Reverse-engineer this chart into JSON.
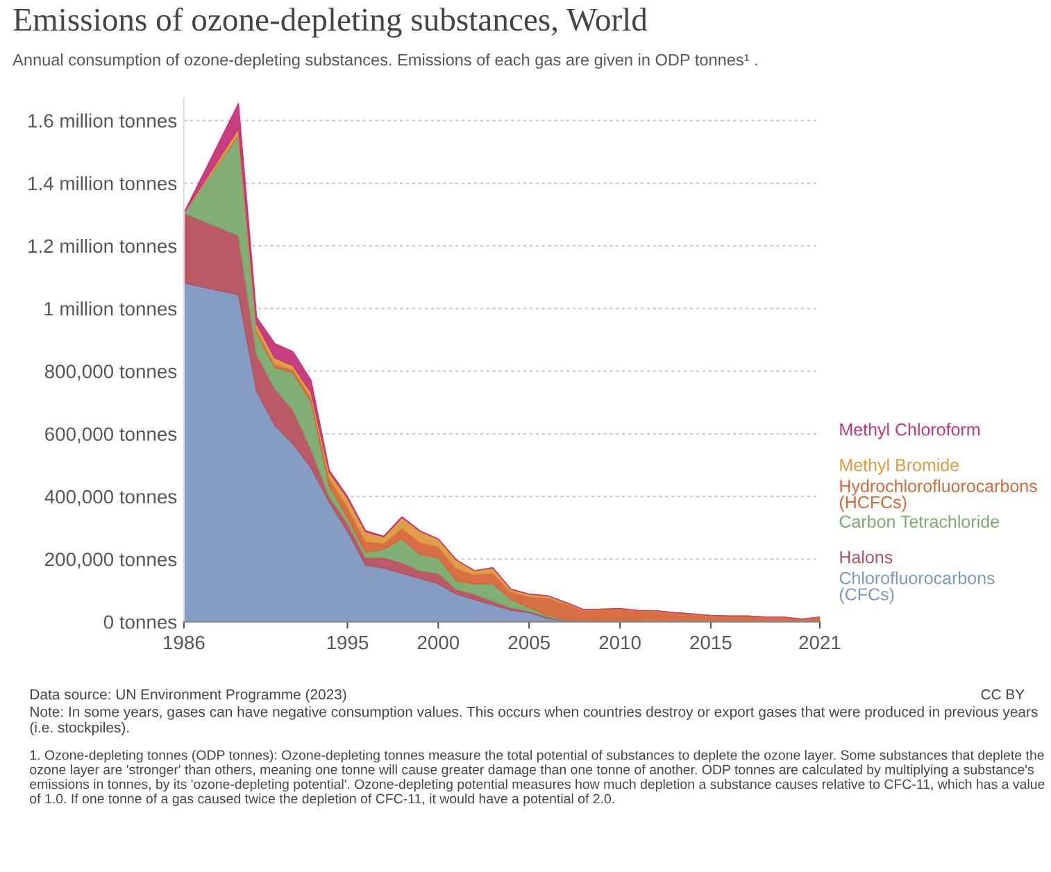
{
  "chart_data": {
    "type": "area",
    "stacked": true,
    "title": "Emissions of ozone-depleting substances, World",
    "subtitle": "Annual consumption of ozone-depleting substances. Emissions of each gas are given in ODP tonnes¹ .",
    "x": [
      1986,
      1989,
      1990,
      1991,
      1992,
      1993,
      1994,
      1995,
      1996,
      1997,
      1998,
      1999,
      2000,
      2001,
      2002,
      2003,
      2004,
      2005,
      2006,
      2007,
      2008,
      2009,
      2010,
      2011,
      2012,
      2013,
      2014,
      2015,
      2016,
      2017,
      2018,
      2019,
      2020,
      2021
    ],
    "series": [
      {
        "name": "Chlorofluorocarbons (CFCs)",
        "color": "#7e97c0",
        "values": [
          1081000,
          1044000,
          736000,
          627000,
          568000,
          492000,
          382000,
          290000,
          180000,
          172000,
          155000,
          138000,
          121000,
          88000,
          71000,
          54000,
          37000,
          29000,
          12000,
          3000,
          0,
          0,
          0,
          0,
          0,
          0,
          0,
          0,
          0,
          0,
          0,
          0,
          0,
          0
        ]
      },
      {
        "name": "Halons",
        "color": "#b5515e",
        "values": [
          224000,
          189000,
          118000,
          117000,
          109000,
          59000,
          18000,
          25000,
          25000,
          33000,
          34000,
          25000,
          34000,
          16000,
          17000,
          12000,
          8000,
          5000,
          5000,
          2000,
          1000,
          1000,
          1000,
          1000,
          0,
          0,
          0,
          0,
          0,
          0,
          0,
          0,
          0,
          0
        ]
      },
      {
        "name": "Carbon Tetrachloride",
        "color": "#7aab6e",
        "values": [
          0,
          318000,
          67000,
          68000,
          118000,
          151000,
          33000,
          17000,
          17000,
          26000,
          75000,
          51000,
          50000,
          26000,
          33000,
          55000,
          26000,
          11000,
          5000,
          3000,
          1000,
          1000,
          1000,
          1000,
          1000,
          0,
          0,
          0,
          0,
          0,
          0,
          0,
          0,
          0
        ]
      },
      {
        "name": "Hydrochlorofluorocarbons (HCFCs)",
        "color": "#d6673a",
        "values": [
          0,
          5000,
          10000,
          10000,
          10000,
          15000,
          25000,
          35000,
          35000,
          20000,
          35000,
          40000,
          35000,
          40000,
          30000,
          35000,
          25000,
          35000,
          55000,
          50000,
          35000,
          36000,
          38000,
          33000,
          33000,
          28000,
          24000,
          19000,
          17000,
          17000,
          14000,
          14000,
          7000,
          14000
        ]
      },
      {
        "name": "Methyl Bromide",
        "color": "#dc9a3d",
        "values": [
          0,
          18000,
          20000,
          20000,
          12000,
          15000,
          20000,
          28000,
          30000,
          20000,
          34000,
          35000,
          24000,
          27000,
          12000,
          16000,
          8000,
          8000,
          6000,
          4000,
          2000,
          2000,
          2000,
          1000,
          1000,
          1000,
          1000,
          1000,
          1000,
          1000,
          1000,
          1000,
          1000,
          1000
        ]
      },
      {
        "name": "Methyl Chloroform",
        "color": "#c4357a",
        "values": [
          0,
          80000,
          21000,
          46000,
          45000,
          38000,
          5000,
          5000,
          3000,
          2000,
          2000,
          1000,
          0,
          0,
          0,
          0,
          0,
          0,
          0,
          0,
          0,
          0,
          0,
          0,
          0,
          0,
          0,
          0,
          0,
          0,
          0,
          0,
          0,
          0
        ]
      }
    ],
    "xlim": [
      1986,
      2021
    ],
    "xticks": [
      1986,
      1995,
      2000,
      2005,
      2010,
      2015,
      2021
    ],
    "ylim": [
      0,
      1670000
    ],
    "yticks": [
      {
        "value": 0,
        "label": "0 tonnes"
      },
      {
        "value": 200000,
        "label": "200,000 tonnes"
      },
      {
        "value": 400000,
        "label": "400,000 tonnes"
      },
      {
        "value": 600000,
        "label": "600,000 tonnes"
      },
      {
        "value": 800000,
        "label": "800,000 tonnes"
      },
      {
        "value": 1000000,
        "label": "1 million tonnes"
      },
      {
        "value": 1200000,
        "label": "1.2 million tonnes"
      },
      {
        "value": 1400000,
        "label": "1.4 million tonnes"
      },
      {
        "value": 1600000,
        "label": "1.6 million tonnes"
      }
    ],
    "grid": "y",
    "legend": "right",
    "annotations": [
      "Data source: UN Environment Programme (2023)",
      "CC BY",
      "Note: In some years, gases can have negative consumption values. This occurs when countries destroy or export gases that were produced in previous years (i.e. stockpiles).",
      "1. Ozone-depleting tonnes (ODP tonnes): Ozone-depleting tonnes measure the total potential of substances to deplete the ozone layer. Some substances that deplete the ozone layer are 'stronger' than others, meaning one tonne will cause greater damage than one tonne of another. ODP tonnes are calculated by multiplying a substance's emissions in tonnes, by its 'ozone-depleting potential'. Ozone-depleting potential measures how much depletion a substance causes relative to CFC-11, which has a value of 1.0. If one tonne of a gas caused twice the depletion of CFC-11, it would have a potential of 2.0."
    ]
  }
}
